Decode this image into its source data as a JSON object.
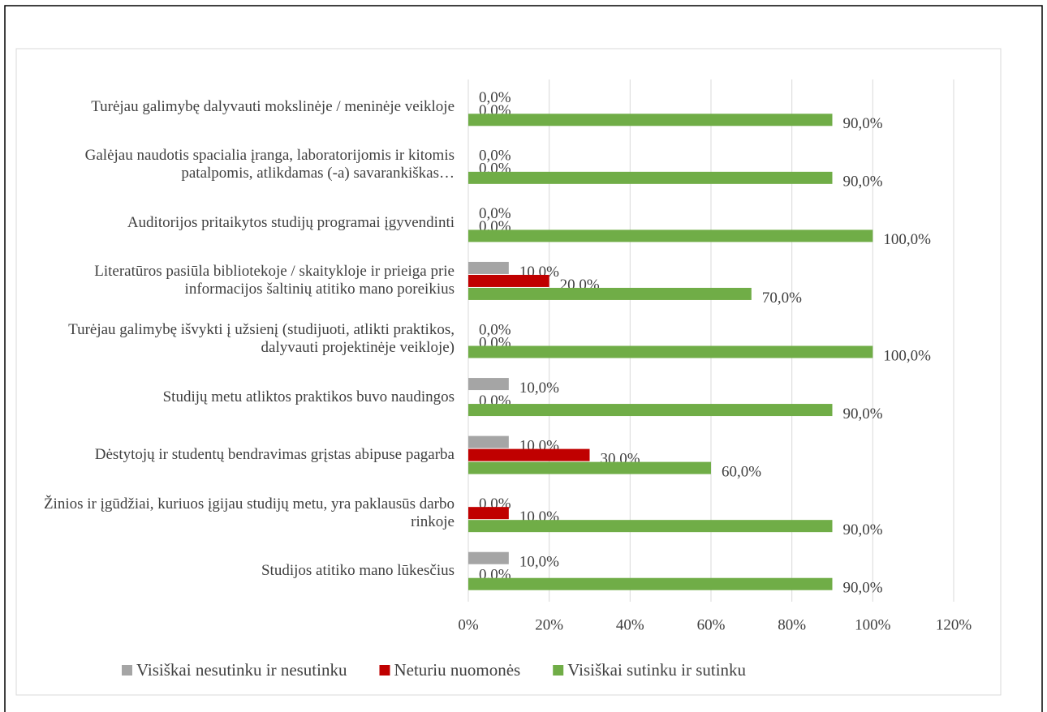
{
  "chart_data": {
    "type": "barh",
    "categories": [
      "Turėjau galimybę dalyvauti mokslinėje / meninėje veikloje",
      "Galėjau naudotis spacialia įranga, laboratorijomis ir kitomis patalpomis, atlikdamas (-a) savarankiškas…",
      "Auditorijos pritaikytos studijų programai įgyvendinti",
      "Literatūros pasiūla bibliotekoje / skaitykloje ir prieiga prie informacijos šaltinių atitiko mano poreikius",
      "Turėjau galimybę išvykti į užsienį (studijuoti, atlikti praktikos, dalyvauti projektinėje veikloje)",
      "Studijų metu atliktos praktikos buvo naudingos",
      "Dėstytojų ir studentų bendravimas grįstas abipuse pagarba",
      "Žinios ir įgūdžiai, kuriuos įgijau studijų metu, yra paklausūs darbo rinkoje",
      "Studijos atitiko mano lūkesčius"
    ],
    "series": [
      {
        "name": "Visiškai nesutinku ir nesutinku",
        "color": "#a5a5a5",
        "values": [
          0,
          0,
          0,
          10,
          0,
          10,
          10,
          0,
          10
        ],
        "value_labels": [
          "0,0%",
          "0,0%",
          "0,0%",
          "10,0%",
          "0,0%",
          "10,0%",
          "10,0%",
          "0,0%",
          "10,0%"
        ]
      },
      {
        "name": "Neturiu nuomonės",
        "color": "#c00000",
        "values": [
          0,
          0,
          0,
          20,
          0,
          0,
          30,
          10,
          0
        ],
        "value_labels": [
          "0,0%",
          "0,0%",
          "0,0%",
          "20,0%",
          "0,0%",
          "0,0%",
          "30,0%",
          "10,0%",
          "0,0%"
        ]
      },
      {
        "name": "Visiškai sutinku ir sutinku",
        "color": "#70ad47",
        "values": [
          90,
          90,
          100,
          70,
          100,
          90,
          60,
          90,
          90
        ],
        "value_labels": [
          "90,0%",
          "90,0%",
          "100,0%",
          "70,0%",
          "100,0%",
          "90,0%",
          "60,0%",
          "90,0%",
          "90,0%"
        ]
      }
    ],
    "xlim": [
      0,
      120
    ],
    "xticks": [
      {
        "value": 0,
        "label": "0%"
      },
      {
        "value": 20,
        "label": "20%"
      },
      {
        "value": 40,
        "label": "40%"
      },
      {
        "value": 60,
        "label": "60%"
      },
      {
        "value": 80,
        "label": "80%"
      },
      {
        "value": 100,
        "label": "100%"
      },
      {
        "value": 120,
        "label": "120%"
      }
    ],
    "grid": true,
    "legend": "bottom"
  }
}
